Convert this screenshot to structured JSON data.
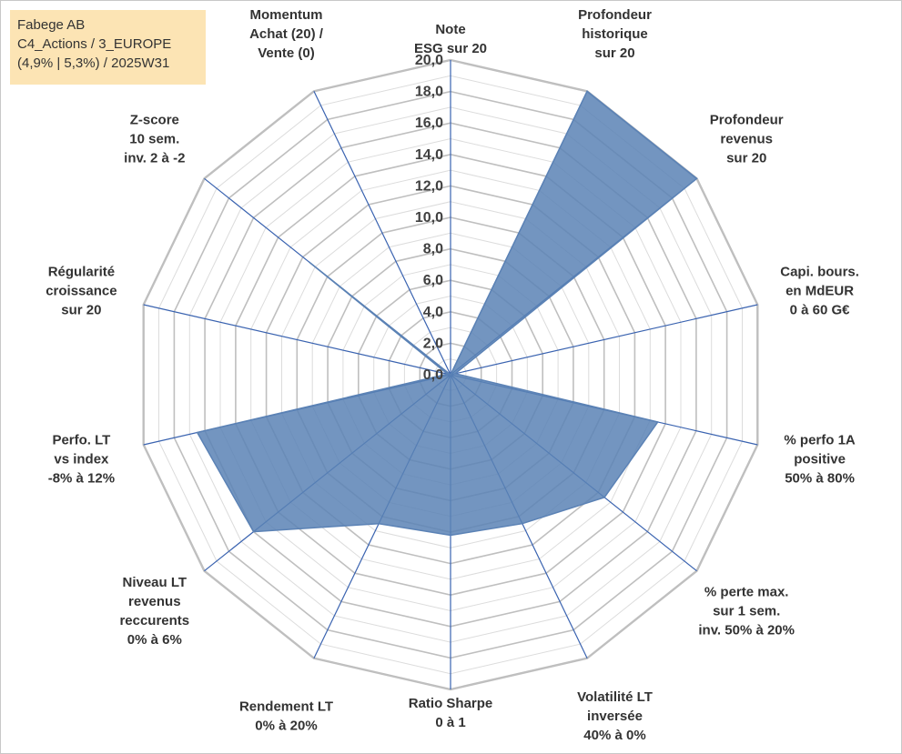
{
  "info_box": {
    "line1": "Fabege AB",
    "line2": "C4_Actions / 3_EUROPE",
    "line3": "(4,9% | 5,3%) / 2025W31"
  },
  "colors": {
    "fill": "#5b82b5",
    "axis": "#3a63b0",
    "grid_major": "#bfbfbf",
    "grid_minor": "#dcdcdc",
    "text": "#333333"
  },
  "chart_data": {
    "type": "radar",
    "rmin": 0,
    "rmax": 20,
    "tick_step": 2,
    "tick_labels": [
      "0,0",
      "2,0",
      "4,0",
      "6,0",
      "8,0",
      "10,0",
      "12,0",
      "14,0",
      "16,0",
      "18,0",
      "20,0"
    ],
    "axes": [
      {
        "label": [
          "Note",
          "ESG sur 20"
        ],
        "value": 0
      },
      {
        "label": [
          "Profondeur",
          "historique",
          "sur 20"
        ],
        "value": 20
      },
      {
        "label": [
          "Profondeur",
          "revenus",
          "sur 20"
        ],
        "value": 20
      },
      {
        "label": [
          "Capi. bours.",
          "en MdEUR",
          "0 à 60 G€"
        ],
        "value": 0.3
      },
      {
        "label": [
          "% perfo 1A",
          "positive",
          "50% à 80%"
        ],
        "value": 13.5
      },
      {
        "label": [
          "% perte max.",
          "sur 1 sem.",
          "inv. 50% à 20%"
        ],
        "value": 12.5
      },
      {
        "label": [
          "Volatilité LT",
          "inversée",
          "40% à 0%"
        ],
        "value": 10.5
      },
      {
        "label": [
          "Ratio Sharpe",
          "0 à 1"
        ],
        "value": 10.2
      },
      {
        "label": [
          "Rendement LT",
          "0% à 20%"
        ],
        "value": 10.5
      },
      {
        "label": [
          "Niveau LT",
          "revenus",
          "reccurents",
          "0% à 6%"
        ],
        "value": 16
      },
      {
        "label": [
          "Perfo. LT",
          "vs index",
          "-8% à 12%"
        ],
        "value": 16.5
      },
      {
        "label": [
          "Régularité",
          "croissance",
          "sur 20"
        ],
        "value": 0.2
      },
      {
        "label": [
          "Z-score",
          "10 sem.",
          "inv. 2 à -2"
        ],
        "value": 11.5
      },
      {
        "label": [
          "Momentum",
          "Achat (20) /",
          "Vente (0)"
        ],
        "value": 0
      }
    ]
  }
}
